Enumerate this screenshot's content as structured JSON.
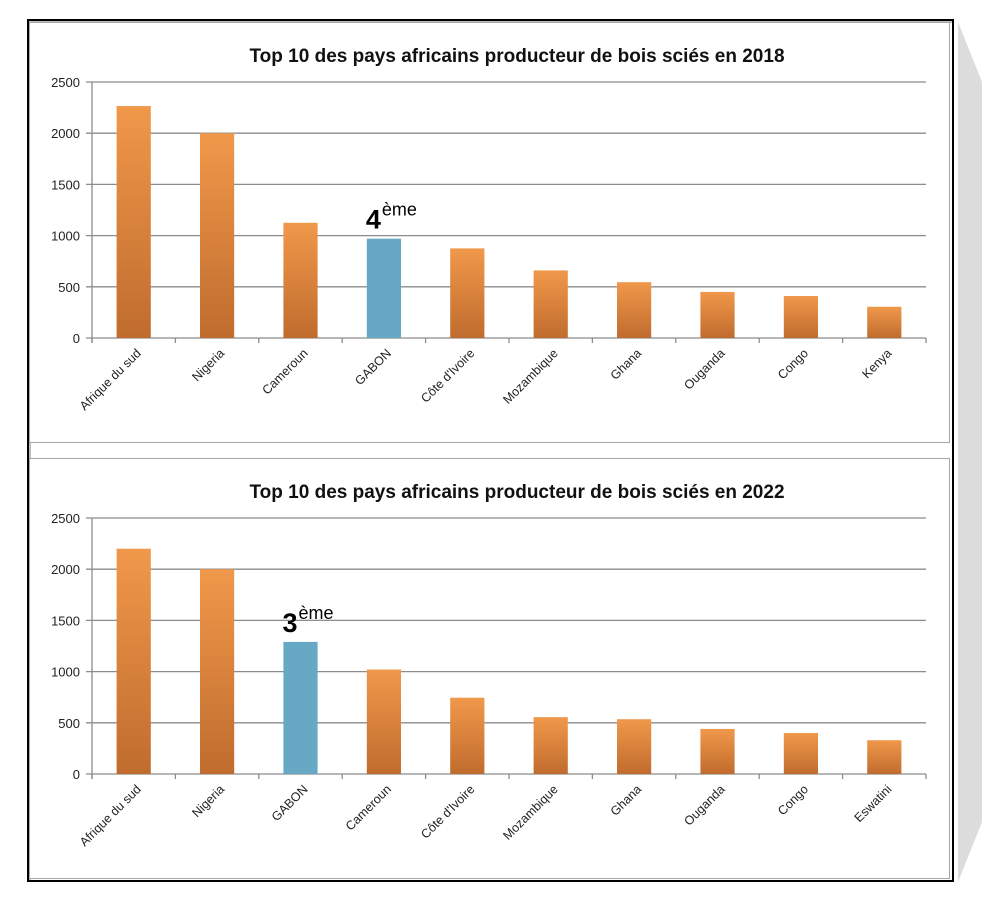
{
  "chart_data": [
    {
      "type": "bar",
      "title": "Top 10 des pays africains producteur de bois sciés en 2018",
      "xlabel": "",
      "ylabel": "",
      "ylim": [
        0,
        2500
      ],
      "yticks": [
        0,
        500,
        1000,
        1500,
        2000,
        2500
      ],
      "grid": true,
      "legend": "none",
      "categories": [
        "Afrique du sud",
        "Nigeria",
        "Cameroun",
        "GABON",
        "Côte d'Ivoire",
        "Mozambique",
        "Ghana",
        "Ouganda",
        "Congo",
        "Kenya"
      ],
      "values": [
        2265,
        2000,
        1125,
        970,
        875,
        660,
        545,
        450,
        410,
        305
      ],
      "highlight_index": 3,
      "annotation": {
        "number": "4",
        "suffix": "ème",
        "target": "GABON"
      }
    },
    {
      "type": "bar",
      "title": "Top 10 des pays africains producteur de bois sciés en 2022",
      "xlabel": "",
      "ylabel": "",
      "ylim": [
        0,
        2500
      ],
      "yticks": [
        0,
        500,
        1000,
        1500,
        2000,
        2500
      ],
      "grid": true,
      "legend": "none",
      "categories": [
        "Afrique du sud",
        "Nigeria",
        "GABON",
        "Cameroun",
        "Côte d'Ivoire",
        "Mozambique",
        "Ghana",
        "Ouganda",
        "Congo",
        "Eswatini"
      ],
      "values": [
        2200,
        2000,
        1290,
        1020,
        745,
        555,
        535,
        440,
        400,
        330
      ],
      "highlight_index": 2,
      "annotation": {
        "number": "3",
        "suffix": "ème",
        "target": "GABON"
      }
    }
  ],
  "colors": {
    "bar_top": "#f0984a",
    "bar_bottom": "#c06c2e",
    "highlight": "#67a9c4",
    "grid": "#8c8c8c",
    "text": "#222222"
  }
}
